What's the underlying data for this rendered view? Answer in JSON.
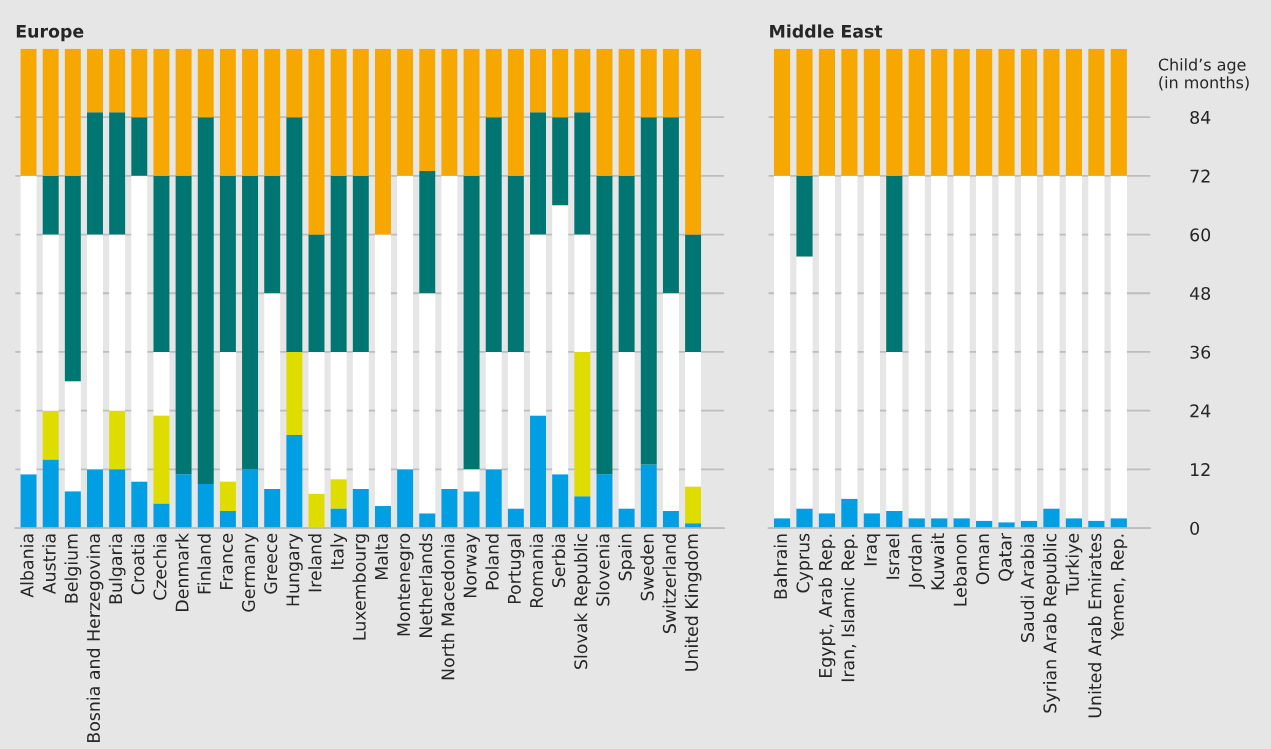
{
  "chart_data": [
    {
      "type": "bar",
      "stacked": true,
      "title": "Europe",
      "tick_labels": "x",
      "grid": "y",
      "ylim": [
        0,
        98
      ],
      "yticks": [
        0,
        12,
        24,
        36,
        48,
        60,
        72,
        84
      ],
      "categories": [
        "Albania",
        "Austria",
        "Belgium",
        "Bosnia and Herzegovina",
        "Bulgaria",
        "Croatia",
        "Czechia",
        "Denmark",
        "Finland",
        "France",
        "Germany",
        "Greece",
        "Hungary",
        "Ireland",
        "Italy",
        "Luxembourg",
        "Malta",
        "Montenegro",
        "Netherlands",
        "North Macedonia",
        "Norway",
        "Poland",
        "Portugal",
        "Romania",
        "Serbia",
        "Slovak Republic",
        "Slovenia",
        "Spain",
        "Sweden",
        "Switzerland",
        "United Kingdom"
      ],
      "series": [
        {
          "color": "#009fe3",
          "values": [
            11,
            14,
            7.5,
            12,
            12,
            9.5,
            5,
            11,
            9,
            3.5,
            12,
            8,
            19,
            0,
            4,
            8,
            4.5,
            12,
            3,
            8,
            7.5,
            12,
            4,
            23,
            11,
            6.5,
            11,
            4,
            13,
            3.5,
            1
          ]
        },
        {
          "color": "#dfdc00",
          "values": [
            0,
            10,
            0,
            0,
            12,
            0,
            18,
            0,
            0,
            6,
            0,
            0,
            17,
            7,
            6,
            0,
            0,
            0,
            0,
            0,
            0,
            0,
            0,
            0,
            0,
            29.5,
            0,
            0,
            0,
            0,
            7.5
          ]
        },
        {
          "color": "#ffffff",
          "values": [
            61,
            36,
            22.5,
            48,
            36,
            62.5,
            13,
            0,
            0,
            26.5,
            0,
            40,
            0,
            29,
            26,
            28,
            55.5,
            60,
            45,
            64,
            4.5,
            24,
            32,
            37,
            55,
            24,
            0,
            32,
            0,
            44.5,
            27.5
          ]
        },
        {
          "color": "#007672",
          "values": [
            0,
            12,
            42,
            25,
            25,
            12,
            36,
            61,
            75,
            36,
            60,
            24,
            48,
            24,
            36,
            36,
            0,
            0,
            25,
            0,
            60,
            48,
            36,
            25,
            18,
            25,
            61,
            36,
            71,
            36,
            24
          ]
        },
        {
          "color": "#f6a800",
          "values": [
            26,
            26,
            26,
            13,
            13,
            14,
            26,
            26,
            14,
            26,
            26,
            26,
            14,
            38,
            26,
            26,
            38,
            26,
            25,
            26,
            26,
            14,
            26,
            13,
            14,
            13,
            26,
            26,
            14,
            14,
            38
          ]
        }
      ]
    },
    {
      "type": "bar",
      "stacked": true,
      "title": "Middle East",
      "ylabel": "Child’s age\n(in months)",
      "grid": "y",
      "ylim": [
        0,
        98
      ],
      "yticks": [
        0,
        12,
        24,
        36,
        48,
        60,
        72,
        84
      ],
      "categories": [
        "Bahrain",
        "Cyprus",
        "Egypt, Arab Rep.",
        "Iran, Islamic Rep.",
        "Iraq",
        "Israel",
        "Jordan",
        "Kuwait",
        "Lebanon",
        "Oman",
        "Qatar",
        "Saudi Arabia",
        "Syrian Arab Republic",
        "Turkiye",
        "United Arab Emirates",
        "Yemen, Rep."
      ],
      "series": [
        {
          "color": "#009fe3",
          "values": [
            2,
            4,
            3,
            6,
            3,
            3.5,
            2,
            2,
            2,
            1.5,
            1.2,
            1.5,
            4,
            2,
            1.5,
            2
          ]
        },
        {
          "color": "#ffffff",
          "values": [
            70,
            51.5,
            69,
            66,
            69,
            32.5,
            70,
            70,
            70,
            70.5,
            70.8,
            70.5,
            68,
            70,
            70.5,
            70
          ]
        },
        {
          "color": "#007672",
          "values": [
            0,
            16.5,
            0,
            0,
            0,
            36,
            0,
            0,
            0,
            0,
            0,
            0,
            0,
            0,
            0,
            0
          ]
        },
        {
          "color": "#f6a800",
          "values": [
            26,
            26,
            26,
            26,
            26,
            26,
            26,
            26,
            26,
            26,
            26,
            26,
            26,
            26,
            26,
            26
          ]
        }
      ]
    }
  ]
}
